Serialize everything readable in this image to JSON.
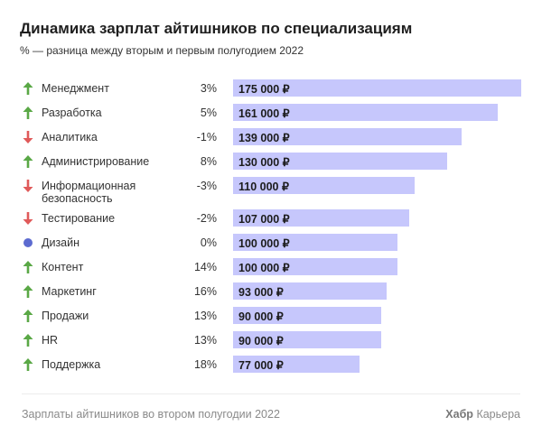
{
  "title": "Динамика зарплат айтишников по специализациям",
  "subtitle": "% — разница между вторым и первым полугодием 2022",
  "footer": {
    "source": "Зарплаты айтишников во втором полугодии 2022",
    "brand_bold": "Хабр",
    "brand_rest": "Карьера"
  },
  "colors": {
    "bar": "#c6c7fc",
    "up": "#5aa846",
    "down": "#e05a5a",
    "flat": "#5c6bd0"
  },
  "chart_data": {
    "type": "bar",
    "orientation": "horizontal",
    "title": "Динамика зарплат айтишников по специализациям",
    "subtitle": "% — разница между вторым и первым полугодием 2022",
    "categories": [
      "Менеджмент",
      "Разработка",
      "Аналитика",
      "Администрирование",
      "Информационная безопасность",
      "Тестирование",
      "Дизайн",
      "Контент",
      "Маркетинг",
      "Продажи",
      "HR",
      "Поддержка"
    ],
    "values": [
      175000,
      161000,
      139000,
      130000,
      110000,
      107000,
      100000,
      100000,
      93000,
      90000,
      90000,
      77000
    ],
    "value_labels": [
      "175 000 ₽",
      "161 000 ₽",
      "139 000 ₽",
      "130 000 ₽",
      "110 000 ₽",
      "107 000 ₽",
      "100 000 ₽",
      "100 000 ₽",
      "93 000 ₽",
      "90 000 ₽",
      "90 000 ₽",
      "77 000 ₽"
    ],
    "change_labels": [
      "3%",
      "5%",
      "-1%",
      "8%",
      "-3%",
      "-2%",
      "0%",
      "14%",
      "16%",
      "13%",
      "13%",
      "18%"
    ],
    "trend_icons": [
      "arrow-up",
      "arrow-up",
      "arrow-down",
      "arrow-up",
      "arrow-down",
      "arrow-down",
      "dot",
      "arrow-up",
      "arrow-up",
      "arrow-up",
      "arrow-up",
      "arrow-up"
    ],
    "xlim": [
      0,
      175000
    ],
    "grid": false
  }
}
